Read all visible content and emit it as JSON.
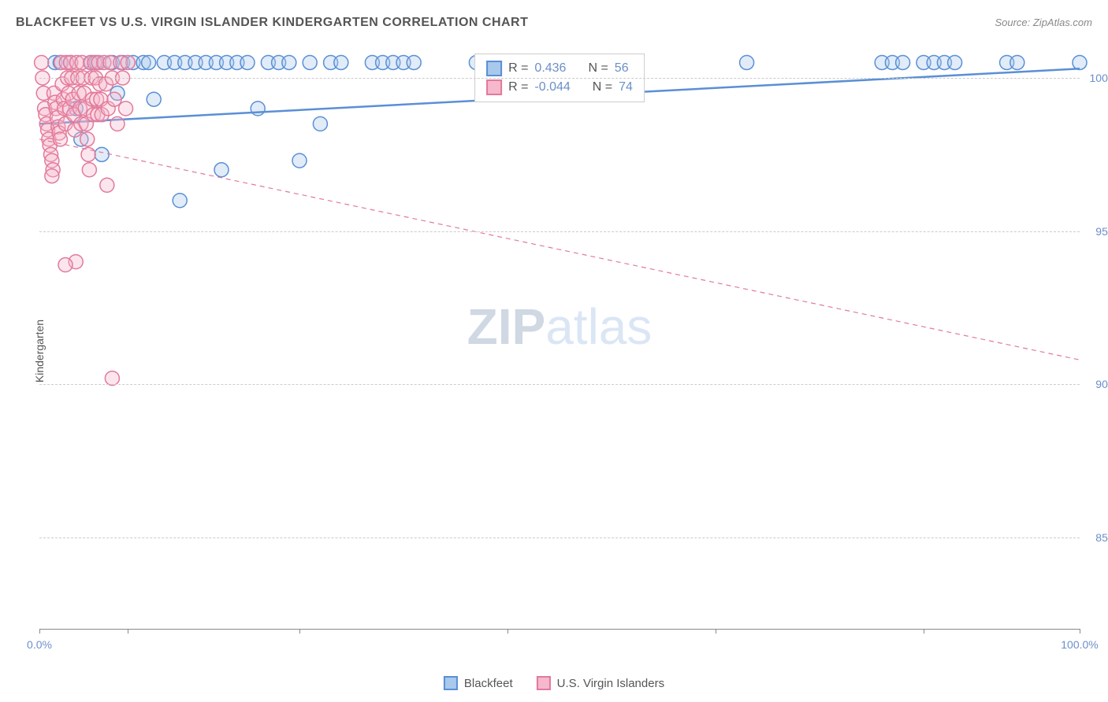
{
  "header": {
    "title": "BLACKFEET VS U.S. VIRGIN ISLANDER KINDERGARTEN CORRELATION CHART",
    "source_prefix": "Source: ",
    "source": "ZipAtlas.com"
  },
  "chart": {
    "type": "scatter",
    "ylabel": "Kindergarten",
    "watermark_zip": "ZIP",
    "watermark_atlas": "atlas",
    "background_color": "#ffffff",
    "grid_color": "#cccccc",
    "xlim": [
      0,
      100
    ],
    "ylim": [
      82,
      101
    ],
    "yticks": [
      85,
      90,
      95,
      100
    ],
    "ytick_labels": [
      "85.0%",
      "90.0%",
      "95.0%",
      "100.0%"
    ],
    "xtick_positions": [
      0,
      8.5,
      25,
      45,
      65,
      85,
      100
    ],
    "xtick_labels_left": "0.0%",
    "xtick_labels_right": "100.0%",
    "ytick_label_color": "#6b8fc9",
    "xtick_label_color": "#6b8fc9",
    "marker_radius": 9,
    "marker_stroke_width": 1.5,
    "marker_fill_opacity": 0.35,
    "series": [
      {
        "name": "Blackfeet",
        "color_stroke": "#5a8fd6",
        "color_fill": "#a8c8ec",
        "R": "0.436",
        "N": "56",
        "trend": {
          "x1": 0,
          "y1": 98.5,
          "x2": 100,
          "y2": 100.3,
          "dash": "0",
          "width": 2.5
        },
        "points": [
          [
            1.5,
            100.5
          ],
          [
            2,
            100.5
          ],
          [
            3,
            100.5
          ],
          [
            3.5,
            99
          ],
          [
            4,
            98
          ],
          [
            5,
            100.5
          ],
          [
            5.5,
            100.5
          ],
          [
            6,
            97.5
          ],
          [
            7,
            100.5
          ],
          [
            7.5,
            99.5
          ],
          [
            8,
            100.5
          ],
          [
            9,
            100.5
          ],
          [
            10,
            100.5
          ],
          [
            10.5,
            100.5
          ],
          [
            11,
            99.3
          ],
          [
            12,
            100.5
          ],
          [
            13,
            100.5
          ],
          [
            13.5,
            96
          ],
          [
            14,
            100.5
          ],
          [
            15,
            100.5
          ],
          [
            16,
            100.5
          ],
          [
            17,
            100.5
          ],
          [
            17.5,
            97
          ],
          [
            18,
            100.5
          ],
          [
            19,
            100.5
          ],
          [
            20,
            100.5
          ],
          [
            21,
            99
          ],
          [
            22,
            100.5
          ],
          [
            23,
            100.5
          ],
          [
            24,
            100.5
          ],
          [
            25,
            97.3
          ],
          [
            26,
            100.5
          ],
          [
            27,
            98.5
          ],
          [
            28,
            100.5
          ],
          [
            29,
            100.5
          ],
          [
            32,
            100.5
          ],
          [
            33,
            100.5
          ],
          [
            34,
            100.5
          ],
          [
            35,
            100.5
          ],
          [
            36,
            100.5
          ],
          [
            42,
            100.5
          ],
          [
            44,
            100.5
          ],
          [
            46,
            100.5
          ],
          [
            55,
            100.5
          ],
          [
            57,
            100.5
          ],
          [
            68,
            100.5
          ],
          [
            81,
            100.5
          ],
          [
            82,
            100.5
          ],
          [
            83,
            100.5
          ],
          [
            85,
            100.5
          ],
          [
            86,
            100.5
          ],
          [
            87,
            100.5
          ],
          [
            88,
            100.5
          ],
          [
            93,
            100.5
          ],
          [
            94,
            100.5
          ],
          [
            100,
            100.5
          ]
        ]
      },
      {
        "name": "U.S. Virgin Islanders",
        "color_stroke": "#e27a9a",
        "color_fill": "#f5b8cc",
        "R": "-0.044",
        "N": "74",
        "trend": {
          "x1": 0,
          "y1": 98.0,
          "x2": 100,
          "y2": 90.8,
          "dash": "6,5",
          "width": 1.2
        },
        "points": [
          [
            0.2,
            100.5
          ],
          [
            0.3,
            100
          ],
          [
            0.4,
            99.5
          ],
          [
            0.5,
            99
          ],
          [
            0.6,
            98.8
          ],
          [
            0.7,
            98.5
          ],
          [
            0.8,
            98.3
          ],
          [
            0.9,
            98
          ],
          [
            1,
            97.8
          ],
          [
            1.1,
            97.5
          ],
          [
            1.2,
            97.3
          ],
          [
            1.3,
            97
          ],
          [
            1.4,
            99.5
          ],
          [
            1.5,
            99.2
          ],
          [
            1.6,
            99
          ],
          [
            1.7,
            98.7
          ],
          [
            1.8,
            98.4
          ],
          [
            1.9,
            98.2
          ],
          [
            2,
            98
          ],
          [
            2.1,
            100.5
          ],
          [
            2.2,
            99.8
          ],
          [
            2.3,
            99.3
          ],
          [
            2.4,
            99
          ],
          [
            2.5,
            98.5
          ],
          [
            2.6,
            100.5
          ],
          [
            2.7,
            100
          ],
          [
            2.8,
            99.5
          ],
          [
            2.9,
            99
          ],
          [
            3,
            100.5
          ],
          [
            3.1,
            100
          ],
          [
            3.2,
            99.3
          ],
          [
            3.3,
            98.8
          ],
          [
            3.4,
            98.3
          ],
          [
            3.5,
            94
          ],
          [
            3.6,
            100.5
          ],
          [
            3.7,
            100
          ],
          [
            3.8,
            99.5
          ],
          [
            3.9,
            99
          ],
          [
            4,
            98.5
          ],
          [
            4.1,
            100.5
          ],
          [
            4.2,
            100
          ],
          [
            4.3,
            99.5
          ],
          [
            4.4,
            99
          ],
          [
            4.5,
            98.5
          ],
          [
            4.6,
            98
          ],
          [
            4.7,
            97.5
          ],
          [
            4.8,
            97
          ],
          [
            4.9,
            100.5
          ],
          [
            5,
            100
          ],
          [
            5.1,
            99.3
          ],
          [
            5.2,
            98.8
          ],
          [
            5.3,
            100.5
          ],
          [
            5.4,
            100
          ],
          [
            5.5,
            99.3
          ],
          [
            5.6,
            98.8
          ],
          [
            5.7,
            100.5
          ],
          [
            5.8,
            99.8
          ],
          [
            5.9,
            99.3
          ],
          [
            6,
            98.8
          ],
          [
            6.2,
            100.5
          ],
          [
            6.4,
            99.8
          ],
          [
            6.6,
            99
          ],
          [
            6.8,
            100.5
          ],
          [
            7,
            100
          ],
          [
            7.2,
            99.3
          ],
          [
            7.5,
            98.5
          ],
          [
            7.8,
            100.5
          ],
          [
            8,
            100
          ],
          [
            8.3,
            99
          ],
          [
            8.5,
            100.5
          ],
          [
            6.5,
            96.5
          ],
          [
            7,
            90.2
          ],
          [
            2.5,
            93.9
          ],
          [
            1.2,
            96.8
          ]
        ]
      }
    ],
    "legend_box": {
      "R_label": "R =",
      "N_label": "N ="
    },
    "bottom_legend": {
      "items": [
        "Blackfeet",
        "U.S. Virgin Islanders"
      ]
    }
  }
}
